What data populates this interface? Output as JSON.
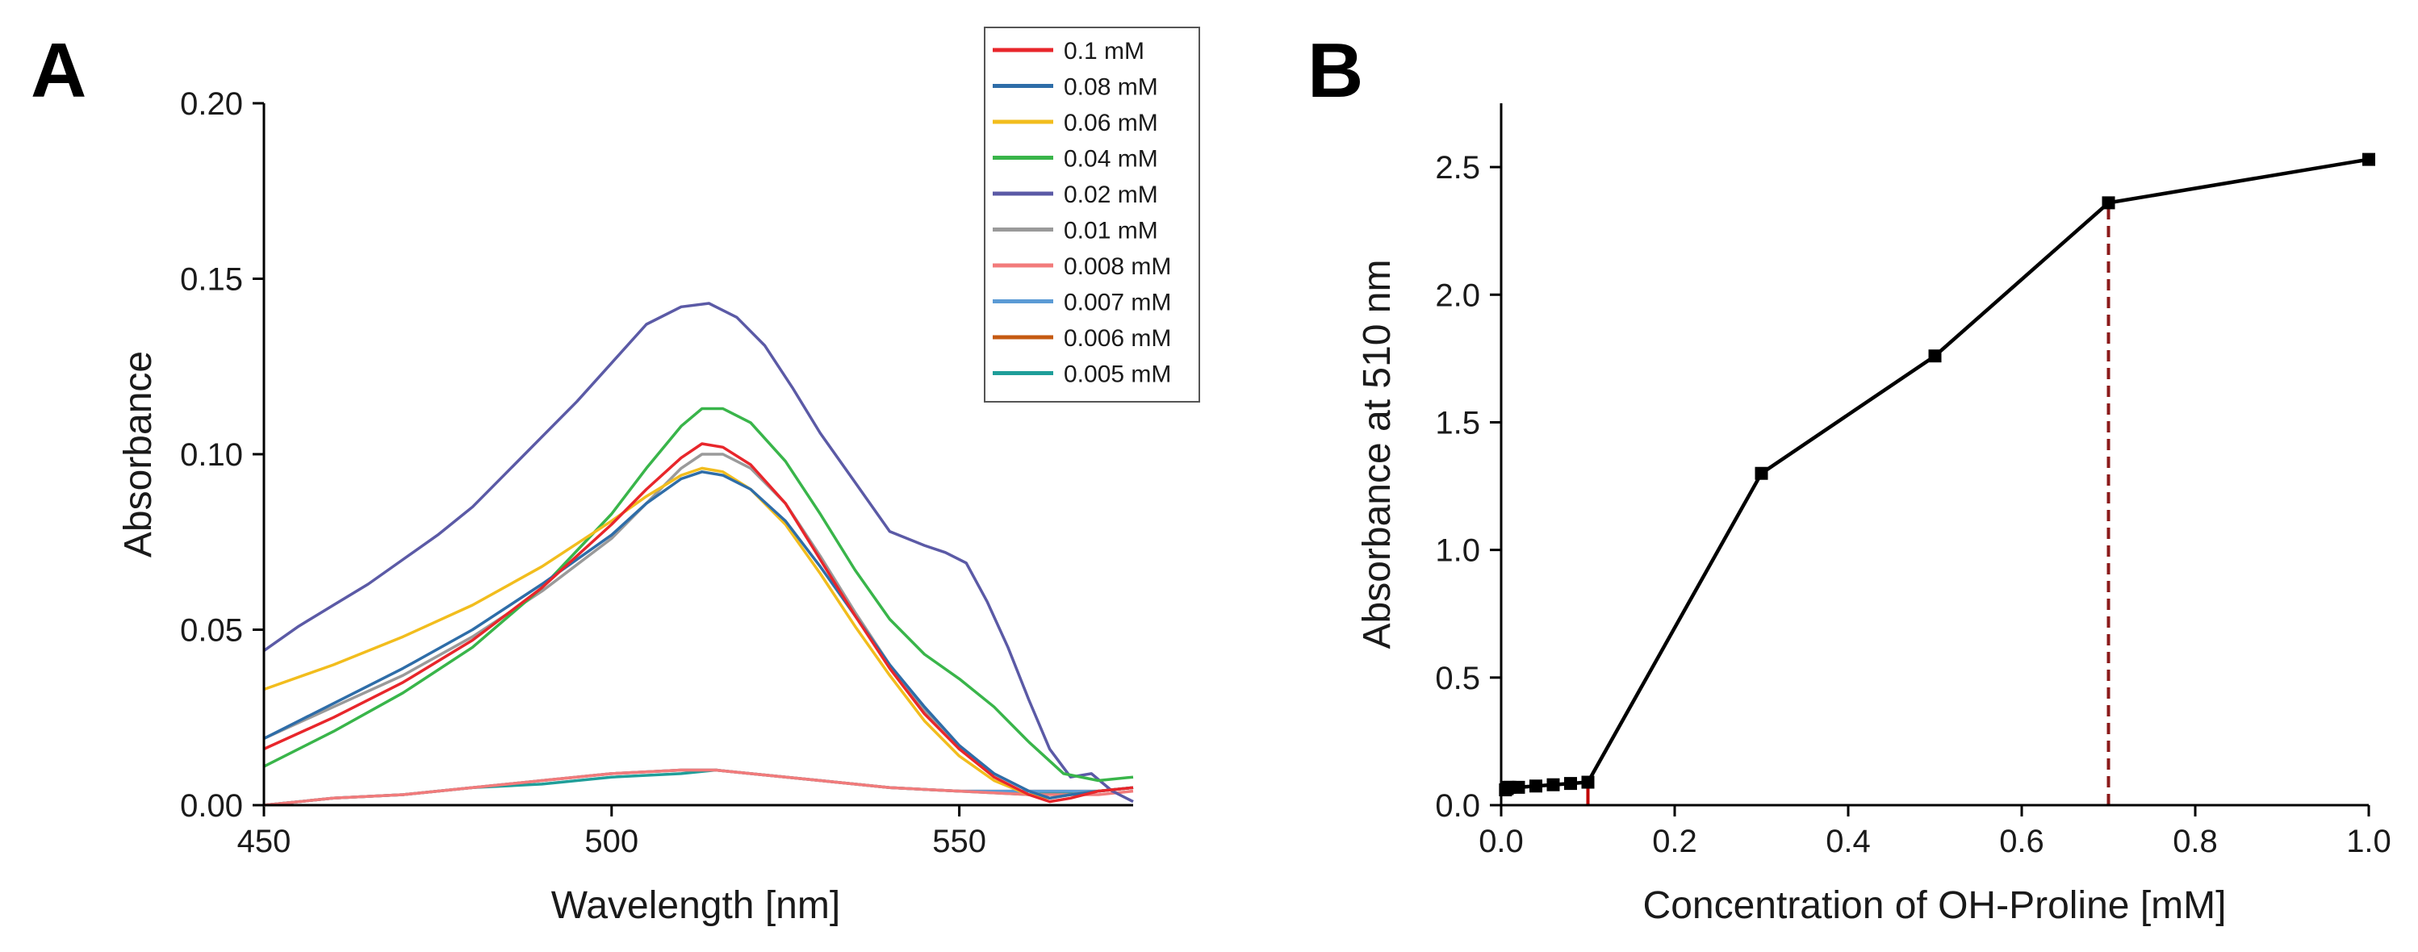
{
  "panel_letters": {
    "a": "A",
    "b": "B"
  },
  "chart_data": [
    {
      "type": "line",
      "panel": "A",
      "xlabel": "Wavelength [nm]",
      "ylabel": "Absorbance",
      "xlim": [
        450,
        575
      ],
      "ylim": [
        0,
        0.2
      ],
      "xticks": [
        450,
        500,
        550
      ],
      "xtick_labels": [
        "450",
        "500",
        "550"
      ],
      "yticks": [
        0,
        0.05,
        0.1,
        0.15,
        0.2
      ],
      "ytick_labels": [
        "0.00",
        "0.05",
        "0.10",
        "0.15",
        "0.20"
      ],
      "legend_position": "top-right",
      "series": [
        {
          "name": "0.1 mM",
          "color": "#e8262b",
          "x": [
            450,
            460,
            470,
            480,
            490,
            500,
            505,
            510,
            513,
            516,
            520,
            525,
            530,
            535,
            540,
            545,
            550,
            555,
            560,
            563,
            566,
            570,
            575
          ],
          "y": [
            0.016,
            0.025,
            0.035,
            0.047,
            0.062,
            0.08,
            0.09,
            0.099,
            0.103,
            0.102,
            0.097,
            0.086,
            0.07,
            0.054,
            0.039,
            0.026,
            0.016,
            0.008,
            0.003,
            0.001,
            0.002,
            0.004,
            0.005
          ]
        },
        {
          "name": "0.08 mM",
          "color": "#2e6da8",
          "x": [
            450,
            460,
            470,
            480,
            490,
            500,
            505,
            510,
            513,
            516,
            520,
            525,
            530,
            535,
            540,
            545,
            550,
            555,
            560,
            563,
            566,
            570,
            575
          ],
          "y": [
            0.019,
            0.029,
            0.039,
            0.05,
            0.063,
            0.077,
            0.086,
            0.093,
            0.095,
            0.094,
            0.09,
            0.081,
            0.068,
            0.054,
            0.04,
            0.028,
            0.017,
            0.009,
            0.004,
            0.002,
            0.003,
            0.004,
            0.005
          ]
        },
        {
          "name": "0.06 mM",
          "color": "#f2bd1d",
          "x": [
            450,
            460,
            470,
            480,
            490,
            500,
            505,
            510,
            513,
            516,
            520,
            525,
            530,
            535,
            540,
            545,
            550,
            555,
            560,
            563,
            566,
            570,
            575
          ],
          "y": [
            0.033,
            0.04,
            0.048,
            0.057,
            0.068,
            0.081,
            0.088,
            0.094,
            0.096,
            0.095,
            0.09,
            0.08,
            0.066,
            0.051,
            0.037,
            0.024,
            0.014,
            0.007,
            0.003,
            0.002,
            0.003,
            0.004,
            0.005
          ]
        },
        {
          "name": "0.04 mM",
          "color": "#39b54a",
          "x": [
            450,
            460,
            470,
            480,
            490,
            500,
            505,
            510,
            513,
            516,
            520,
            525,
            530,
            535,
            540,
            545,
            550,
            555,
            560,
            565,
            570,
            575
          ],
          "y": [
            0.011,
            0.021,
            0.032,
            0.045,
            0.062,
            0.083,
            0.096,
            0.108,
            0.113,
            0.113,
            0.109,
            0.098,
            0.083,
            0.067,
            0.053,
            0.043,
            0.036,
            0.028,
            0.018,
            0.009,
            0.007,
            0.008
          ]
        },
        {
          "name": "0.02  mM",
          "color": "#5b5aa6",
          "x": [
            450,
            455,
            460,
            465,
            470,
            475,
            480,
            485,
            490,
            495,
            500,
            505,
            510,
            514,
            518,
            522,
            526,
            530,
            535,
            540,
            545,
            548,
            551,
            554,
            557,
            560,
            563,
            566,
            569,
            572,
            575
          ],
          "y": [
            0.044,
            0.051,
            0.057,
            0.063,
            0.07,
            0.077,
            0.085,
            0.095,
            0.105,
            0.115,
            0.126,
            0.137,
            0.142,
            0.143,
            0.139,
            0.131,
            0.119,
            0.106,
            0.092,
            0.078,
            0.074,
            0.072,
            0.069,
            0.058,
            0.045,
            0.03,
            0.016,
            0.008,
            0.009,
            0.004,
            0.001
          ]
        },
        {
          "name": "0.01 mM",
          "color": "#9a9a9a",
          "x": [
            450,
            460,
            470,
            480,
            490,
            500,
            505,
            510,
            513,
            516,
            520,
            525,
            530,
            535,
            540,
            545,
            550,
            555,
            560,
            563,
            566,
            570,
            575
          ],
          "y": [
            0.019,
            0.028,
            0.037,
            0.048,
            0.061,
            0.076,
            0.086,
            0.096,
            0.1,
            0.1,
            0.096,
            0.086,
            0.071,
            0.055,
            0.04,
            0.027,
            0.016,
            0.009,
            0.004,
            0.002,
            0.003,
            0.004,
            0.005
          ]
        },
        {
          "name": "0.008 mM",
          "color": "#f27b7b",
          "x": [
            450,
            460,
            470,
            480,
            490,
            500,
            510,
            515,
            520,
            530,
            540,
            550,
            560,
            570,
            575
          ],
          "y": [
            0.0,
            0.002,
            0.003,
            0.005,
            0.007,
            0.009,
            0.01,
            0.01,
            0.009,
            0.007,
            0.005,
            0.004,
            0.003,
            0.003,
            0.004
          ]
        },
        {
          "name": "0.007 mM",
          "color": "#5b9bd5",
          "x": [
            450,
            460,
            470,
            480,
            490,
            500,
            510,
            515,
            520,
            530,
            540,
            550,
            560,
            570,
            575
          ],
          "y": [
            0.0,
            0.002,
            0.003,
            0.005,
            0.007,
            0.009,
            0.01,
            0.01,
            0.009,
            0.007,
            0.005,
            0.004,
            0.004,
            0.004,
            0.005
          ]
        },
        {
          "name": "0.006 mM",
          "color": "#c55a11",
          "x": [
            450,
            460,
            470,
            480,
            490,
            500,
            510,
            515,
            520,
            530,
            540,
            550,
            560,
            570,
            575
          ],
          "y": [
            0.0,
            0.002,
            0.003,
            0.005,
            0.007,
            0.009,
            0.01,
            0.01,
            0.009,
            0.007,
            0.005,
            0.004,
            0.004,
            0.004,
            0.005
          ]
        },
        {
          "name": "0.005 mM",
          "color": "#1f9e99",
          "x": [
            450,
            460,
            470,
            480,
            490,
            500,
            510,
            515,
            520,
            530,
            540,
            550,
            560,
            570,
            575
          ],
          "y": [
            0.0,
            0.002,
            0.003,
            0.005,
            0.006,
            0.008,
            0.009,
            0.01,
            0.009,
            0.007,
            0.005,
            0.004,
            0.003,
            0.004,
            0.005
          ]
        }
      ]
    },
    {
      "type": "line",
      "panel": "B",
      "xlabel": "Concentration of OH-Proline [mM]",
      "ylabel": "Absorbance at 510 nm",
      "xlim": [
        0,
        1.0
      ],
      "ylim": [
        0,
        2.75
      ],
      "xticks": [
        0,
        0.2,
        0.4,
        0.6,
        0.8,
        1.0
      ],
      "xtick_labels": [
        "0.0",
        "0.2",
        "0.4",
        "0.6",
        "0.8",
        "1.0"
      ],
      "yticks": [
        0,
        0.5,
        1.0,
        1.5,
        2.0,
        2.5
      ],
      "ytick_labels": [
        "0.0",
        "0.5",
        "1.0",
        "1.5",
        "2.0",
        "2.5"
      ],
      "series": [
        {
          "name": "Absorbance at 510 nm",
          "color": "#000000",
          "x": [
            0.005,
            0.006,
            0.007,
            0.008,
            0.01,
            0.02,
            0.04,
            0.06,
            0.08,
            0.1,
            0.3,
            0.5,
            0.7,
            1.0
          ],
          "y": [
            0.06,
            0.065,
            0.065,
            0.07,
            0.07,
            0.07,
            0.075,
            0.08,
            0.085,
            0.09,
            1.3,
            1.76,
            2.36,
            2.53
          ]
        }
      ],
      "reference_lines": [
        {
          "x": 0.1,
          "color": "#c00000",
          "style": "solid"
        },
        {
          "x": 0.7,
          "color": "#8b1a1a",
          "style": "dashed"
        }
      ]
    }
  ]
}
